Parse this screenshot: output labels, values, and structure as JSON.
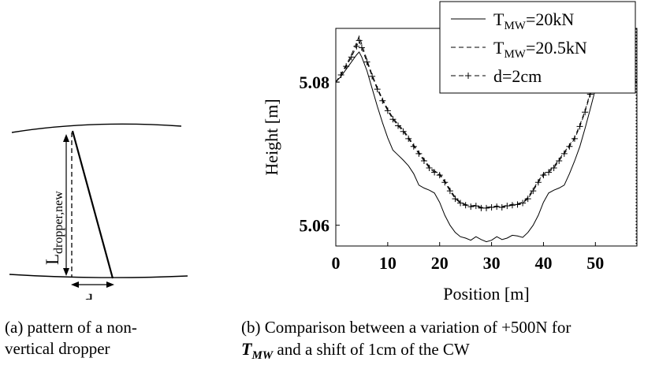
{
  "panel_a": {
    "label_L": "L",
    "label_L_sub": "dropper,new",
    "label_d": "d",
    "caption_line1": "(a) pattern of a non-",
    "caption_line2": "vertical dropper"
  },
  "panel_b": {
    "caption_line1": "(b) Comparison between a variation of +500N for",
    "caption_math": "T",
    "caption_math_sub": "MW",
    "caption_rest": " and a shift of 1cm of the CW"
  },
  "chart_data": {
    "type": "line",
    "xlabel": "Position [m]",
    "ylabel": "Height [m]",
    "xlim": [
      0,
      58
    ],
    "ylim": [
      5.0571,
      5.0875
    ],
    "xticks": [
      0,
      10,
      20,
      30,
      40,
      50
    ],
    "yticks": [
      5.06,
      5.08
    ],
    "ytick_labels": [
      "5.06",
      "5.08"
    ],
    "grid": false,
    "legend_position": "top-right",
    "series": [
      {
        "name": "T_MW=20kN",
        "legend_main": "T",
        "legend_sub": "MW",
        "legend_tail": "=20kN",
        "style": "solid",
        "x": [
          0,
          1,
          2,
          3,
          4,
          4.5,
          5,
          6,
          7,
          8,
          9,
          10,
          11,
          12,
          13,
          14,
          15,
          16,
          17,
          18,
          19,
          20,
          21,
          22,
          23,
          24,
          25,
          26,
          27,
          28,
          29,
          30,
          31,
          32,
          33,
          34,
          35,
          36,
          37,
          38,
          39,
          40,
          41,
          42,
          43,
          44,
          45,
          46,
          47,
          48,
          49,
          50
        ],
        "y": [
          5.08,
          5.0808,
          5.0818,
          5.0828,
          5.0838,
          5.0842,
          5.0835,
          5.0816,
          5.0791,
          5.0766,
          5.0743,
          5.0722,
          5.0705,
          5.0698,
          5.0691,
          5.0683,
          5.0672,
          5.0656,
          5.0652,
          5.0649,
          5.0645,
          5.0632,
          5.0614,
          5.06,
          5.059,
          5.0584,
          5.0582,
          5.0579,
          5.0584,
          5.058,
          5.0577,
          5.0579,
          5.0584,
          5.058,
          5.0582,
          5.0586,
          5.0585,
          5.0583,
          5.059,
          5.06,
          5.0614,
          5.0632,
          5.0645,
          5.0649,
          5.0652,
          5.0656,
          5.0672,
          5.069,
          5.071,
          5.0735,
          5.0762,
          5.079
        ]
      },
      {
        "name": "T_MW=20.5kN",
        "legend_main": "T",
        "legend_sub": "MW",
        "legend_tail": "=20.5kN",
        "style": "dashed",
        "x": [
          0,
          1,
          2,
          3,
          4,
          4.5,
          5,
          6,
          7,
          8,
          9,
          10,
          11,
          12,
          13,
          14,
          15,
          16,
          17,
          18,
          19,
          20,
          21,
          22,
          23,
          24,
          25,
          26,
          27,
          28,
          29,
          30,
          31,
          32,
          33,
          34,
          35,
          36,
          37,
          38,
          39,
          40,
          41,
          42,
          43,
          44,
          45,
          46,
          47,
          48,
          49,
          50,
          51,
          52,
          53,
          54,
          55,
          56,
          57,
          58
        ],
        "y": [
          5.08,
          5.0811,
          5.0824,
          5.0838,
          5.0855,
          5.0864,
          5.0853,
          5.0831,
          5.081,
          5.0792,
          5.0776,
          5.0762,
          5.075,
          5.0741,
          5.0733,
          5.0723,
          5.0712,
          5.0702,
          5.0692,
          5.0682,
          5.0676,
          5.0672,
          5.0662,
          5.065,
          5.0639,
          5.0632,
          5.0629,
          5.0627,
          5.0628,
          5.0625,
          5.0625,
          5.0626,
          5.0627,
          5.0626,
          5.0628,
          5.0629,
          5.063,
          5.0632,
          5.0639,
          5.065,
          5.0662,
          5.0672,
          5.0676,
          5.0682,
          5.0692,
          5.0702,
          5.0712,
          5.0723,
          5.074,
          5.076,
          5.0785,
          5.081,
          5.0834,
          5.0852,
          5.086,
          5.0848,
          5.083,
          5.0815,
          5.0805,
          5.08
        ]
      },
      {
        "name": "d=2cm",
        "legend_main": "d=2cm",
        "legend_sub": "",
        "legend_tail": "",
        "style": "dashed-plus",
        "x": [
          0,
          1,
          2,
          3,
          4,
          4.5,
          5,
          6,
          7,
          8,
          9,
          10,
          11,
          12,
          13,
          14,
          15,
          16,
          17,
          18,
          19,
          20,
          21,
          22,
          23,
          24,
          25,
          26,
          27,
          28,
          29,
          30,
          31,
          32,
          33,
          34,
          35,
          36,
          37,
          38,
          39,
          40,
          41,
          42,
          43,
          44,
          45,
          46,
          47,
          48,
          49,
          50,
          51,
          52,
          53,
          54,
          55,
          56,
          57,
          58
        ],
        "y": [
          5.08,
          5.081,
          5.0822,
          5.0835,
          5.085,
          5.0858,
          5.0848,
          5.0828,
          5.0808,
          5.079,
          5.0774,
          5.076,
          5.0748,
          5.0739,
          5.0731,
          5.0721,
          5.071,
          5.07,
          5.069,
          5.068,
          5.0674,
          5.067,
          5.066,
          5.0648,
          5.0637,
          5.0631,
          5.0628,
          5.0626,
          5.0627,
          5.0624,
          5.0624,
          5.0625,
          5.0626,
          5.0625,
          5.0627,
          5.0628,
          5.0629,
          5.0631,
          5.0637,
          5.0648,
          5.066,
          5.067,
          5.0674,
          5.068,
          5.069,
          5.07,
          5.071,
          5.0721,
          5.0738,
          5.0758,
          5.0783,
          5.0808,
          5.0832,
          5.085,
          5.0858,
          5.0846,
          5.0828,
          5.0813,
          5.0803,
          5.08
        ]
      }
    ]
  }
}
